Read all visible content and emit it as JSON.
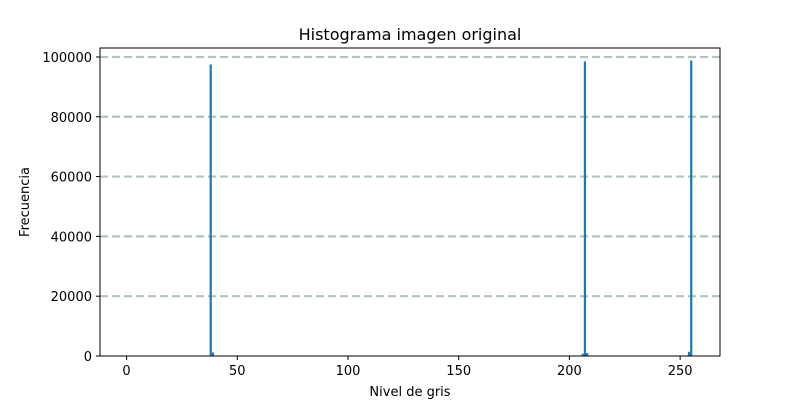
{
  "chart_data": {
    "type": "bar",
    "title": "Histograma imagen original",
    "xlabel": "Nivel de gris",
    "ylabel": "Frecuencia",
    "xlim": [
      -12,
      268
    ],
    "ylim": [
      0,
      103000
    ],
    "x_ticks": [
      0,
      50,
      100,
      150,
      200,
      250
    ],
    "x_tick_labels": [
      "0",
      "50",
      "100",
      "150",
      "200",
      "250"
    ],
    "y_ticks": [
      0,
      20000,
      40000,
      60000,
      80000,
      100000
    ],
    "y_tick_labels": [
      "0",
      "20000",
      "40000",
      "60000",
      "80000",
      "100000"
    ],
    "grid": {
      "axis": "y",
      "style": "dashed",
      "color": "#b0c4c4"
    },
    "bar_color": "#1f77b4",
    "bins": [
      {
        "x": 38,
        "value": 97500
      },
      {
        "x": 39,
        "value": 1200
      },
      {
        "x": 207,
        "value": 98500
      },
      {
        "x": 208,
        "value": 1000
      },
      {
        "x": 206,
        "value": 800
      },
      {
        "x": 255,
        "value": 98800
      },
      {
        "x": 254,
        "value": 1400
      }
    ]
  }
}
